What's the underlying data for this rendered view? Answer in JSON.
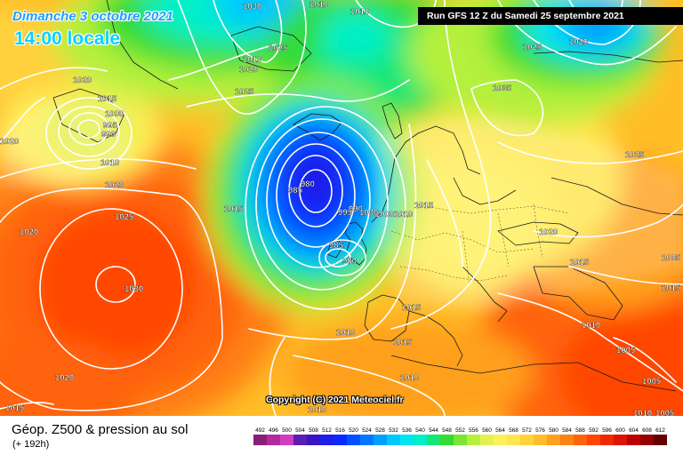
{
  "header": {
    "date": "Dimanche 3 octobre 2021",
    "time": "14:00 locale",
    "run": "Run GFS 12 Z du Samedi 25 septembre 2021"
  },
  "footer": {
    "title": "Géop. Z500 & pression au sol",
    "lead": "(+ 192h)"
  },
  "copyright": "Copyright (C) 2021 Meteociel.fr",
  "legend": {
    "values": [
      "492",
      "496",
      "500",
      "504",
      "508",
      "512",
      "516",
      "520",
      "524",
      "528",
      "532",
      "536",
      "540",
      "544",
      "548",
      "552",
      "556",
      "560",
      "564",
      "568",
      "572",
      "576",
      "580",
      "584",
      "588",
      "592",
      "596",
      "600",
      "604",
      "608",
      "612"
    ],
    "colors": [
      "#8c1e78",
      "#b428a0",
      "#d23cbe",
      "#5a1eb4",
      "#3c14c8",
      "#1e1ee6",
      "#0a28ff",
      "#0050ff",
      "#0078ff",
      "#00a0ff",
      "#00c8ff",
      "#00e6f0",
      "#00f0c8",
      "#14e678",
      "#32dc32",
      "#78e632",
      "#b4f03c",
      "#e6f050",
      "#fff05a",
      "#ffe650",
      "#ffd23c",
      "#ffbe28",
      "#ffa01e",
      "#ff8214",
      "#ff640a",
      "#ff4600",
      "#f02800",
      "#dc1400",
      "#be0000",
      "#960000",
      "#640000"
    ]
  },
  "isobar_labels": [
    "1020",
    "1010",
    "1010",
    "1020",
    "1025",
    "1030",
    "1010",
    "1025",
    "1020",
    "1020",
    "1025",
    "1015",
    "1000",
    "995",
    "990",
    "1010",
    "1020",
    "1025",
    "1020",
    "1030",
    "1020",
    "1015",
    "1015",
    "985",
    "980",
    "995",
    "990",
    "1000",
    "1000",
    "1010",
    "1015",
    "1035",
    "1025",
    "1020",
    "1015",
    "985",
    "980",
    "1005",
    "1010",
    "1015",
    "1015",
    "1010",
    "1010",
    "1005",
    "1005",
    "1010",
    "1005",
    "1015",
    "1010"
  ]
}
